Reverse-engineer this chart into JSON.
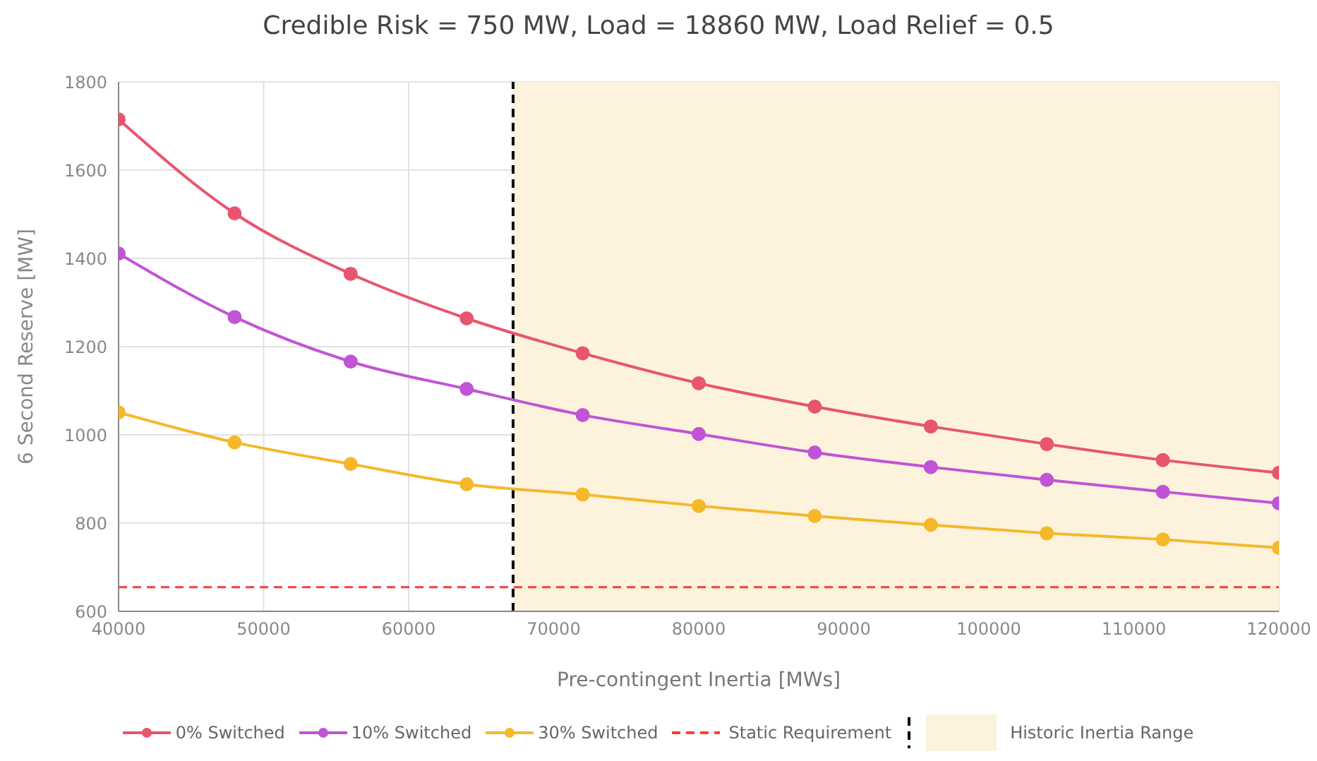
{
  "chart_data": {
    "type": "line",
    "title": "Credible Risk = 750 MW, Load = 18860 MW, Load Relief = 0.5",
    "xlabel": "Pre-contingent Inertia [MWs]",
    "ylabel": "6 Second Reserve [MW]",
    "x": [
      40000,
      48000,
      56000,
      64000,
      72000,
      80000,
      88000,
      96000,
      104000,
      112000,
      120000
    ],
    "series": [
      {
        "name": "0% Switched",
        "color": "#e8556e",
        "values": [
          1715,
          1502,
          1365,
          1264,
          1185,
          1117,
          1064,
          1019,
          979,
          943,
          914
        ]
      },
      {
        "name": "10% Switched",
        "color": "#c154d6",
        "values": [
          1411,
          1267,
          1166,
          1104,
          1045,
          1002,
          960,
          927,
          898,
          871,
          845
        ]
      },
      {
        "name": "30% Switched",
        "color": "#f5b82a",
        "values": [
          1051,
          983,
          934,
          888,
          865,
          839,
          816,
          796,
          777,
          763,
          744
        ]
      }
    ],
    "xlim": [
      40000,
      120000
    ],
    "xticks": [
      40000,
      50000,
      60000,
      70000,
      80000,
      90000,
      100000,
      110000,
      120000
    ],
    "ylim": [
      600,
      1800
    ],
    "yticks": [
      600,
      800,
      1000,
      1200,
      1400,
      1600,
      1800
    ],
    "ref_lines": [
      {
        "axis": "y",
        "value": 655,
        "label": "Static Requirement",
        "color": "#ff3b3b",
        "line_style": "dashed"
      },
      {
        "axis": "x",
        "value": 67200,
        "color": "#000000",
        "line_style": "dashed"
      }
    ],
    "bands": [
      {
        "axis": "x",
        "from": 67200,
        "to": 120000,
        "label": "Historic Inertia Range",
        "color": "#fdf3dc"
      }
    ],
    "grid": true,
    "legend": "bottom",
    "marker": "circle",
    "line_style": "solid"
  }
}
